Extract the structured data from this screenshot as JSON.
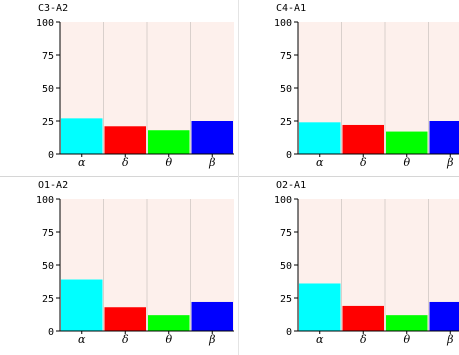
{
  "colors": {
    "plot_background": "#fdf0ec",
    "grid": "#d9d0cc",
    "axis": "#000000",
    "alpha": "#00ffff",
    "delta": "#ff0000",
    "theta": "#00ff00",
    "beta": "#0000ff"
  },
  "chart_data": [
    {
      "type": "bar",
      "title": "C3-A2",
      "categories": [
        "α",
        "δ",
        "θ",
        "β"
      ],
      "values": [
        27,
        21,
        18,
        25
      ],
      "ylim": [
        0,
        100
      ],
      "yticks": [
        "0",
        "25",
        "50",
        "75",
        "100"
      ],
      "grid": true,
      "colors": [
        "#00ffff",
        "#ff0000",
        "#00ff00",
        "#0000ff"
      ]
    },
    {
      "type": "bar",
      "title": "C4-A1",
      "categories": [
        "α",
        "δ",
        "θ",
        "β"
      ],
      "values": [
        24,
        22,
        17,
        25
      ],
      "ylim": [
        0,
        100
      ],
      "yticks": [
        "0",
        "25",
        "50",
        "75",
        "100"
      ],
      "grid": true,
      "colors": [
        "#00ffff",
        "#ff0000",
        "#00ff00",
        "#0000ff"
      ]
    },
    {
      "type": "bar",
      "title": "O1-A2",
      "categories": [
        "α",
        "δ",
        "θ",
        "β"
      ],
      "values": [
        39,
        18,
        12,
        22
      ],
      "ylim": [
        0,
        100
      ],
      "yticks": [
        "0",
        "25",
        "50",
        "75",
        "100"
      ],
      "grid": true,
      "colors": [
        "#00ffff",
        "#ff0000",
        "#00ff00",
        "#0000ff"
      ]
    },
    {
      "type": "bar",
      "title": "O2-A1",
      "categories": [
        "α",
        "δ",
        "θ",
        "β"
      ],
      "values": [
        36,
        19,
        12,
        22
      ],
      "ylim": [
        0,
        100
      ],
      "yticks": [
        "0",
        "25",
        "50",
        "75",
        "100"
      ],
      "grid": true,
      "colors": [
        "#00ffff",
        "#ff0000",
        "#00ff00",
        "#0000ff"
      ]
    }
  ]
}
